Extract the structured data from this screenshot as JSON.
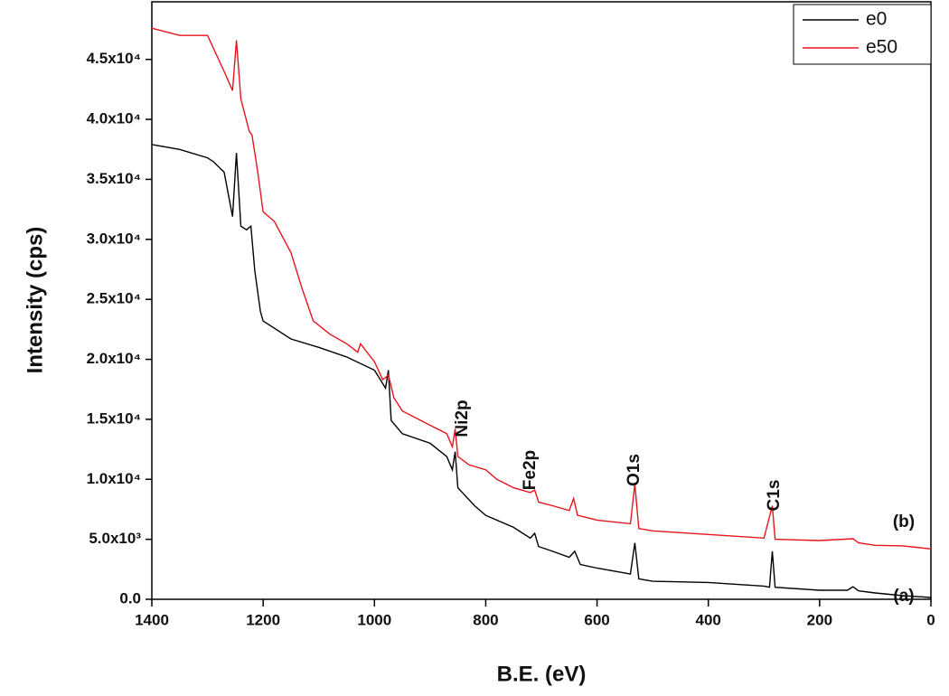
{
  "chart_data": {
    "type": "line",
    "x_label": "B.E. (eV)",
    "y_label": "Intensity (cps)",
    "xlim": [
      1400,
      0
    ],
    "xticks": [
      1400,
      1200,
      1000,
      800,
      600,
      400,
      200,
      0
    ],
    "ylim": [
      0,
      49800
    ],
    "yticks": [
      {
        "value": 0,
        "label": "0.0"
      },
      {
        "value": 5000,
        "label": "5.0x10³"
      },
      {
        "value": 10000,
        "label": "1.0x10⁴"
      },
      {
        "value": 15000,
        "label": "1.5x10⁴"
      },
      {
        "value": 20000,
        "label": "2.0x10⁴"
      },
      {
        "value": 25000,
        "label": "2.5x10⁴"
      },
      {
        "value": 30000,
        "label": "3.0x10⁴"
      },
      {
        "value": 35000,
        "label": "3.5x10⁴"
      },
      {
        "value": 40000,
        "label": "4.0x10⁴"
      },
      {
        "value": 45000,
        "label": "4.5x10⁴"
      }
    ],
    "legend": "top-right",
    "annotations": [
      "Ni2p",
      "Fe2p",
      "O1s",
      "C1s",
      "(b)",
      "(a)"
    ],
    "series": [
      {
        "name": "e0",
        "color": "#000000",
        "x": [
          1400,
          1350,
          1300,
          1290,
          1270,
          1255,
          1248,
          1240,
          1230,
          1222,
          1215,
          1205,
          1200,
          1150,
          1100,
          1050,
          1000,
          980,
          975,
          970,
          950,
          900,
          870,
          860,
          855,
          850,
          820,
          800,
          750,
          720,
          712,
          705,
          680,
          650,
          640,
          630,
          600,
          540,
          532,
          525,
          500,
          400,
          300,
          290,
          285,
          280,
          200,
          150,
          140,
          130,
          100,
          50,
          0
        ],
        "values": [
          37900,
          37500,
          36800,
          36500,
          35600,
          31900,
          37200,
          31100,
          30800,
          31100,
          27400,
          24000,
          23200,
          21700,
          21000,
          20200,
          19100,
          17600,
          19100,
          14900,
          13800,
          13000,
          11900,
          10800,
          12300,
          9300,
          7800,
          7000,
          6000,
          5100,
          5500,
          4400,
          4000,
          3500,
          4000,
          2900,
          2600,
          2100,
          4700,
          1700,
          1500,
          1400,
          1100,
          1000,
          4000,
          1000,
          750,
          750,
          1050,
          700,
          530,
          300,
          150
        ]
      },
      {
        "name": "e50",
        "color": "#e8141c",
        "x": [
          1400,
          1350,
          1300,
          1290,
          1270,
          1255,
          1248,
          1240,
          1225,
          1220,
          1210,
          1200,
          1180,
          1150,
          1130,
          1110,
          1080,
          1050,
          1030,
          1025,
          1000,
          985,
          975,
          965,
          950,
          900,
          870,
          860,
          855,
          850,
          830,
          800,
          780,
          750,
          720,
          712,
          705,
          680,
          650,
          642,
          635,
          600,
          540,
          532,
          525,
          500,
          400,
          300,
          285,
          280,
          200,
          140,
          130,
          100,
          50,
          0
        ],
        "values": [
          47600,
          47000,
          47000,
          46000,
          44000,
          42400,
          46600,
          41700,
          39000,
          38700,
          35700,
          32300,
          31500,
          28900,
          25900,
          23200,
          22100,
          21300,
          20600,
          21300,
          19800,
          18300,
          18700,
          16800,
          15700,
          14500,
          13800,
          12700,
          14200,
          11900,
          11200,
          10800,
          10000,
          9300,
          8900,
          9100,
          8100,
          7800,
          7400,
          8400,
          7000,
          6600,
          6300,
          9600,
          5900,
          5700,
          5400,
          5100,
          7800,
          5000,
          4900,
          5050,
          4700,
          4500,
          4450,
          4200
        ]
      }
    ]
  }
}
